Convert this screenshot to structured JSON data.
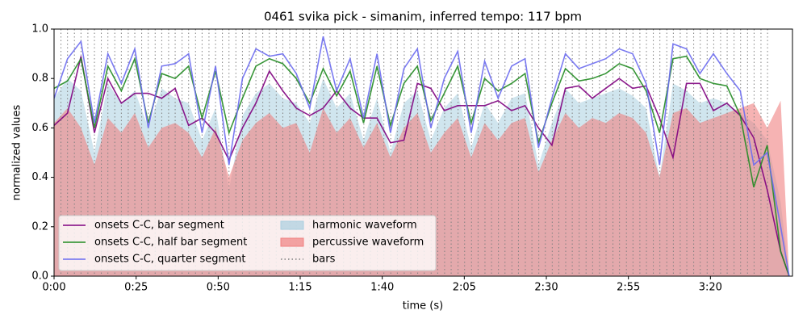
{
  "chart_data": {
    "type": "line",
    "title": "0461 svika pick - simanim, inferred tempo: 117 bpm",
    "xlabel": "time (s)",
    "ylabel": "normalized values",
    "xlim": [
      0,
      225
    ],
    "ylim": [
      0,
      1
    ],
    "xticks": [
      {
        "value": 0,
        "label": "0:00"
      },
      {
        "value": 25,
        "label": "0:25"
      },
      {
        "value": 50,
        "label": "0:50"
      },
      {
        "value": 75,
        "label": "1:15"
      },
      {
        "value": 100,
        "label": "1:40"
      },
      {
        "value": 125,
        "label": "2:05"
      },
      {
        "value": 150,
        "label": "2:30"
      },
      {
        "value": 175,
        "label": "2:55"
      },
      {
        "value": 200,
        "label": "3:20"
      }
    ],
    "yticks": [
      {
        "value": 0,
        "label": "0.0"
      },
      0.2,
      0.4,
      0.6,
      0.8,
      {
        "value": 1,
        "label": "1.0"
      }
    ],
    "legend": "lower left",
    "x": [
      0,
      4.1,
      8.2,
      12.3,
      16.4,
      20.5,
      24.6,
      28.7,
      32.8,
      36.9,
      41.0,
      45.1,
      49.2,
      53.3,
      57.4,
      61.5,
      65.6,
      69.7,
      73.8,
      77.9,
      82.0,
      86.1,
      90.2,
      94.3,
      98.4,
      102.5,
      106.6,
      110.7,
      114.8,
      118.9,
      123.0,
      127.1,
      131.2,
      135.3,
      139.4,
      143.5,
      147.6,
      151.7,
      155.8,
      159.9,
      164.0,
      168.1,
      172.2,
      176.3,
      180.4,
      184.5,
      188.6,
      192.7,
      196.8,
      200.9,
      205.0,
      209.1,
      213.2,
      217.3,
      221.4,
      224.0
    ],
    "series": [
      {
        "name": "onsets C-C, bar segment",
        "style": "line",
        "color": "#800080",
        "values": [
          0.61,
          0.66,
          0.89,
          0.58,
          0.8,
          0.7,
          0.74,
          0.74,
          0.72,
          0.76,
          0.61,
          0.64,
          0.58,
          0.47,
          0.6,
          0.7,
          0.83,
          0.75,
          0.68,
          0.65,
          0.68,
          0.75,
          0.68,
          0.64,
          0.64,
          0.54,
          0.55,
          0.78,
          0.76,
          0.67,
          0.69,
          0.69,
          0.69,
          0.71,
          0.67,
          0.69,
          0.6,
          0.53,
          0.76,
          0.77,
          0.72,
          0.76,
          0.8,
          0.76,
          0.77,
          0.64,
          0.48,
          0.78,
          0.78,
          0.67,
          0.7,
          0.65,
          0.56,
          0.35,
          0.1,
          0.0
        ]
      },
      {
        "name": "onsets C-C, half bar segment",
        "style": "line",
        "color": "#228b22",
        "values": [
          0.76,
          0.79,
          0.88,
          0.6,
          0.85,
          0.75,
          0.88,
          0.62,
          0.82,
          0.8,
          0.85,
          0.64,
          0.83,
          0.58,
          0.72,
          0.85,
          0.88,
          0.86,
          0.8,
          0.7,
          0.84,
          0.73,
          0.83,
          0.62,
          0.85,
          0.61,
          0.78,
          0.85,
          0.63,
          0.74,
          0.85,
          0.62,
          0.8,
          0.75,
          0.78,
          0.82,
          0.54,
          0.7,
          0.84,
          0.79,
          0.8,
          0.82,
          0.86,
          0.84,
          0.75,
          0.58,
          0.88,
          0.89,
          0.8,
          0.78,
          0.77,
          0.65,
          0.36,
          0.53,
          0.1,
          0.0
        ]
      },
      {
        "name": "onsets C-C, quarter segment",
        "style": "line",
        "color": "#6b6bf0",
        "values": [
          0.72,
          0.88,
          0.95,
          0.62,
          0.9,
          0.78,
          0.92,
          0.6,
          0.85,
          0.86,
          0.9,
          0.58,
          0.85,
          0.45,
          0.8,
          0.92,
          0.89,
          0.9,
          0.82,
          0.68,
          0.97,
          0.75,
          0.88,
          0.64,
          0.9,
          0.58,
          0.84,
          0.92,
          0.6,
          0.8,
          0.91,
          0.58,
          0.87,
          0.72,
          0.85,
          0.88,
          0.52,
          0.72,
          0.9,
          0.84,
          0.86,
          0.88,
          0.92,
          0.9,
          0.78,
          0.45,
          0.94,
          0.92,
          0.82,
          0.9,
          0.82,
          0.75,
          0.45,
          0.5,
          0.2,
          0.0
        ]
      },
      {
        "name": "harmonic waveform",
        "style": "area",
        "color": "#a9cfe0",
        "values": [
          0.72,
          0.8,
          0.75,
          0.5,
          0.78,
          0.7,
          0.75,
          0.6,
          0.76,
          0.72,
          0.7,
          0.55,
          0.68,
          0.35,
          0.65,
          0.74,
          0.78,
          0.72,
          0.7,
          0.62,
          0.8,
          0.68,
          0.74,
          0.55,
          0.72,
          0.5,
          0.7,
          0.75,
          0.55,
          0.68,
          0.74,
          0.52,
          0.7,
          0.62,
          0.72,
          0.74,
          0.45,
          0.62,
          0.76,
          0.7,
          0.72,
          0.74,
          0.76,
          0.73,
          0.68,
          0.4,
          0.78,
          0.75,
          0.7,
          0.72,
          0.7,
          0.66,
          0.62,
          0.55,
          0.3,
          0.0
        ]
      },
      {
        "name": "percussive waveform",
        "style": "area",
        "color": "#f08080",
        "values": [
          0.62,
          0.68,
          0.6,
          0.45,
          0.64,
          0.58,
          0.66,
          0.52,
          0.6,
          0.62,
          0.58,
          0.48,
          0.6,
          0.4,
          0.55,
          0.62,
          0.66,
          0.6,
          0.62,
          0.5,
          0.68,
          0.58,
          0.64,
          0.52,
          0.62,
          0.48,
          0.6,
          0.66,
          0.5,
          0.58,
          0.64,
          0.48,
          0.62,
          0.55,
          0.62,
          0.64,
          0.42,
          0.55,
          0.66,
          0.6,
          0.64,
          0.62,
          0.66,
          0.64,
          0.58,
          0.4,
          0.66,
          0.68,
          0.62,
          0.64,
          0.66,
          0.68,
          0.7,
          0.6,
          0.71,
          0.0
        ]
      }
    ],
    "bars": {
      "name": "bars",
      "color": "#808080",
      "x": [
        0,
        2.1,
        4.1,
        6.2,
        8.2,
        10.3,
        12.3,
        14.4,
        16.4,
        18.5,
        20.5,
        22.6,
        24.6,
        26.7,
        28.7,
        30.8,
        32.8,
        34.9,
        36.9,
        39.0,
        41.0,
        43.1,
        45.1,
        47.2,
        49.2,
        51.3,
        53.3,
        55.4,
        57.4,
        59.5,
        61.5,
        63.6,
        65.6,
        67.7,
        69.7,
        71.8,
        73.8,
        75.9,
        77.9,
        80.0,
        82.1,
        84.1,
        86.2,
        88.2,
        90.3,
        92.3,
        94.4,
        96.4,
        98.5,
        100.5,
        102.6,
        104.6,
        106.7,
        108.7,
        110.8,
        112.8,
        114.9,
        116.9,
        119.0,
        121.0,
        123.1,
        125.1,
        127.2,
        129.2,
        131.3,
        133.3,
        135.4,
        137.4,
        139.5,
        141.5,
        143.6,
        145.6,
        147.7,
        149.7,
        151.8,
        153.8,
        155.9,
        157.9,
        160.0,
        162.1,
        164.1,
        166.2,
        168.2,
        170.3,
        172.3,
        174.4,
        176.4,
        178.5,
        180.5,
        182.6,
        184.6,
        186.7,
        188.7,
        190.8,
        192.8,
        194.9,
        196.9,
        199.0,
        201.0,
        203.1,
        205.1,
        207.2,
        209.2,
        211.3,
        213.3,
        215.4,
        217.4
      ]
    }
  }
}
